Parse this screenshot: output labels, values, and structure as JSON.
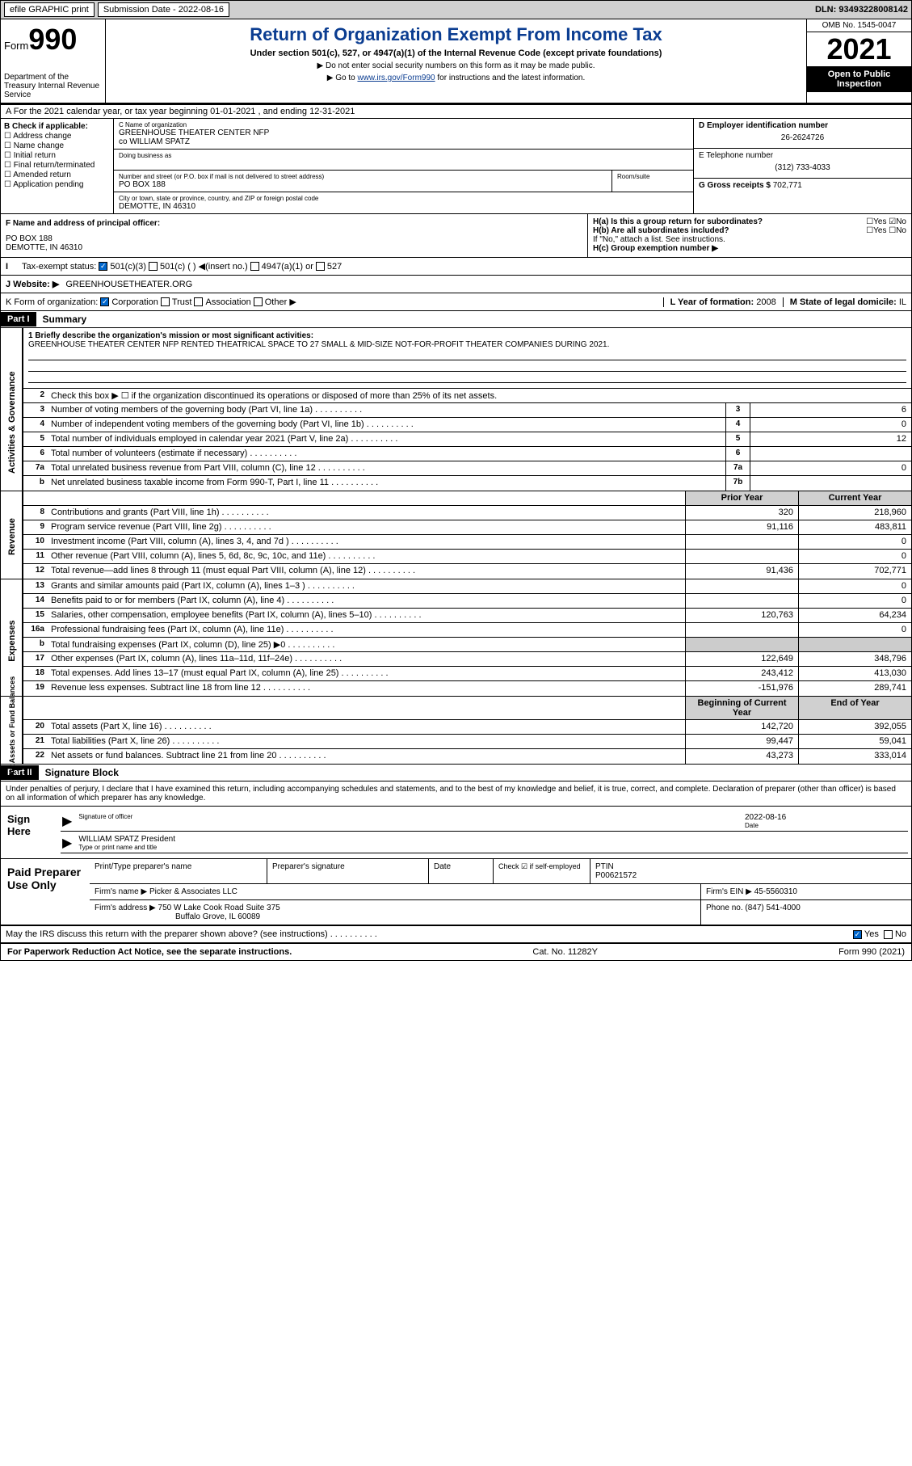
{
  "topbar": {
    "efile": "efile GRAPHIC print",
    "submission": "Submission Date - 2022-08-16",
    "dln": "DLN: 93493228008142"
  },
  "header": {
    "form": "Form",
    "num": "990",
    "dept": "Department of the Treasury Internal Revenue Service",
    "title": "Return of Organization Exempt From Income Tax",
    "subtitle": "Under section 501(c), 527, or 4947(a)(1) of the Internal Revenue Code (except private foundations)",
    "note1": "▶ Do not enter social security numbers on this form as it may be made public.",
    "note2_pre": "▶ Go to ",
    "note2_link": "www.irs.gov/Form990",
    "note2_post": " for instructions and the latest information.",
    "omb": "OMB No. 1545-0047",
    "year": "2021",
    "inspect": "Open to Public Inspection"
  },
  "row_a": "A For the 2021 calendar year, or tax year beginning 01-01-2021   , and ending 12-31-2021",
  "col_b": {
    "label": "B Check if applicable:",
    "items": [
      "Address change",
      "Name change",
      "Initial return",
      "Final return/terminated",
      "Amended return",
      "Application pending"
    ]
  },
  "col_c": {
    "name_lbl": "C Name of organization",
    "name": "GREENHOUSE THEATER CENTER NFP",
    "co": "co WILLIAM SPATZ",
    "dba_lbl": "Doing business as",
    "addr_lbl": "Number and street (or P.O. box if mail is not delivered to street address)",
    "room_lbl": "Room/suite",
    "addr": "PO BOX 188",
    "city_lbl": "City or town, state or province, country, and ZIP or foreign postal code",
    "city": "DEMOTTE, IN  46310",
    "officer_lbl": "F Name and address of principal officer:",
    "officer_addr": "PO BOX 188\nDEMOTTE, IN  46310"
  },
  "col_d": {
    "ein_lbl": "D Employer identification number",
    "ein": "26-2624726",
    "tel_lbl": "E Telephone number",
    "tel": "(312) 733-4033",
    "gross_lbl": "G Gross receipts $",
    "gross": "702,771",
    "ha": "H(a)  Is this a group return for subordinates?",
    "hb": "H(b)  Are all subordinates included?",
    "hb_note": "If \"No,\" attach a list. See instructions.",
    "hc": "H(c)  Group exemption number ▶"
  },
  "tax_status": {
    "lbl": "Tax-exempt status:",
    "opts": [
      "501(c)(3)",
      "501(c) (  ) ◀(insert no.)",
      "4947(a)(1) or",
      "527"
    ]
  },
  "website": {
    "lbl": "J   Website: ▶",
    "val": "GREENHOUSETHEATER.ORG"
  },
  "form_org": {
    "lbl": "K Form of organization:",
    "opts": [
      "Corporation",
      "Trust",
      "Association",
      "Other ▶"
    ]
  },
  "l_year": {
    "lbl": "L Year of formation:",
    "val": "2008"
  },
  "m_state": {
    "lbl": "M State of legal domicile:",
    "val": "IL"
  },
  "part1": {
    "hdr": "Part I",
    "title": "Summary",
    "q1_lbl": "1   Briefly describe the organization's mission or most significant activities:",
    "q1_txt": "GREENHOUSE THEATER CENTER NFP RENTED THEATRICAL SPACE TO 27 SMALL & MID-SIZE NOT-FOR-PROFIT THEATER COMPANIES DURING 2021.",
    "q2": "Check this box ▶ ☐ if the organization discontinued its operations or disposed of more than 25% of its net assets.",
    "rows_gov": [
      {
        "n": "3",
        "t": "Number of voting members of the governing body (Part VI, line 1a)",
        "b": "3",
        "v": "6"
      },
      {
        "n": "4",
        "t": "Number of independent voting members of the governing body (Part VI, line 1b)",
        "b": "4",
        "v": "0"
      },
      {
        "n": "5",
        "t": "Total number of individuals employed in calendar year 2021 (Part V, line 2a)",
        "b": "5",
        "v": "12"
      },
      {
        "n": "6",
        "t": "Total number of volunteers (estimate if necessary)",
        "b": "6",
        "v": ""
      },
      {
        "n": "7a",
        "t": "Total unrelated business revenue from Part VIII, column (C), line 12",
        "b": "7a",
        "v": "0"
      },
      {
        "n": "b",
        "t": "Net unrelated business taxable income from Form 990-T, Part I, line 11",
        "b": "7b",
        "v": ""
      }
    ],
    "col_hdrs": {
      "prior": "Prior Year",
      "current": "Current Year"
    },
    "rows_rev": [
      {
        "n": "8",
        "t": "Contributions and grants (Part VIII, line 1h)",
        "p": "320",
        "c": "218,960"
      },
      {
        "n": "9",
        "t": "Program service revenue (Part VIII, line 2g)",
        "p": "91,116",
        "c": "483,811"
      },
      {
        "n": "10",
        "t": "Investment income (Part VIII, column (A), lines 3, 4, and 7d )",
        "p": "",
        "c": "0"
      },
      {
        "n": "11",
        "t": "Other revenue (Part VIII, column (A), lines 5, 6d, 8c, 9c, 10c, and 11e)",
        "p": "",
        "c": "0"
      },
      {
        "n": "12",
        "t": "Total revenue—add lines 8 through 11 (must equal Part VIII, column (A), line 12)",
        "p": "91,436",
        "c": "702,771"
      }
    ],
    "rows_exp": [
      {
        "n": "13",
        "t": "Grants and similar amounts paid (Part IX, column (A), lines 1–3 )",
        "p": "",
        "c": "0"
      },
      {
        "n": "14",
        "t": "Benefits paid to or for members (Part IX, column (A), line 4)",
        "p": "",
        "c": "0"
      },
      {
        "n": "15",
        "t": "Salaries, other compensation, employee benefits (Part IX, column (A), lines 5–10)",
        "p": "120,763",
        "c": "64,234"
      },
      {
        "n": "16a",
        "t": "Professional fundraising fees (Part IX, column (A), line 11e)",
        "p": "",
        "c": "0"
      },
      {
        "n": "b",
        "t": "Total fundraising expenses (Part IX, column (D), line 25) ▶0",
        "p": "shade",
        "c": "shade"
      },
      {
        "n": "17",
        "t": "Other expenses (Part IX, column (A), lines 11a–11d, 11f–24e)",
        "p": "122,649",
        "c": "348,796"
      },
      {
        "n": "18",
        "t": "Total expenses. Add lines 13–17 (must equal Part IX, column (A), line 25)",
        "p": "243,412",
        "c": "413,030"
      },
      {
        "n": "19",
        "t": "Revenue less expenses. Subtract line 18 from line 12",
        "p": "-151,976",
        "c": "289,741"
      }
    ],
    "col_hdrs2": {
      "beg": "Beginning of Current Year",
      "end": "End of Year"
    },
    "rows_net": [
      {
        "n": "20",
        "t": "Total assets (Part X, line 16)",
        "p": "142,720",
        "c": "392,055"
      },
      {
        "n": "21",
        "t": "Total liabilities (Part X, line 26)",
        "p": "99,447",
        "c": "59,041"
      },
      {
        "n": "22",
        "t": "Net assets or fund balances. Subtract line 21 from line 20",
        "p": "43,273",
        "c": "333,014"
      }
    ]
  },
  "side_labels": {
    "gov": "Activities & Governance",
    "rev": "Revenue",
    "exp": "Expenses",
    "net": "Net Assets or Fund Balances"
  },
  "part2": {
    "hdr": "Part II",
    "title": "Signature Block",
    "decl": "Under penalties of perjury, I declare that I have examined this return, including accompanying schedules and statements, and to the best of my knowledge and belief, it is true, correct, and complete. Declaration of preparer (other than officer) is based on all information of which preparer has any knowledge.",
    "sign_here": "Sign Here",
    "sig_officer": "Signature of officer",
    "date": "Date",
    "sig_date": "2022-08-16",
    "name_title": "WILLIAM SPATZ  President",
    "name_title_lbl": "Type or print name and title"
  },
  "prep": {
    "lbl": "Paid Preparer Use Only",
    "hdrs": [
      "Print/Type preparer's name",
      "Preparer's signature",
      "Date"
    ],
    "check": "Check ☑ if self-employed",
    "ptin_lbl": "PTIN",
    "ptin": "P00621572",
    "firm_lbl": "Firm's name    ▶",
    "firm": "Picker & Associates LLC",
    "ein_lbl": "Firm's EIN ▶",
    "ein": "45-5560310",
    "addr_lbl": "Firm's address ▶",
    "addr": "750 W Lake Cook Road Suite 375",
    "addr2": "Buffalo Grove, IL  60089",
    "phone_lbl": "Phone no.",
    "phone": "(847) 541-4000"
  },
  "may_discuss": "May the IRS discuss this return with the preparer shown above? (see instructions)",
  "footer": {
    "left": "For Paperwork Reduction Act Notice, see the separate instructions.",
    "mid": "Cat. No. 11282Y",
    "right": "Form 990 (2021)"
  }
}
